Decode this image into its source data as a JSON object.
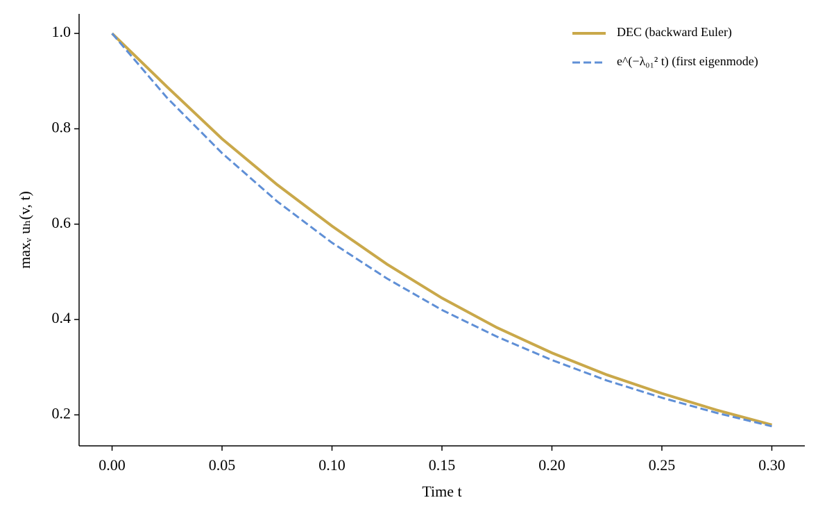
{
  "chart_data": {
    "type": "line",
    "xlabel": "Time t",
    "ylabel": "maxᵥ uₕ(v, t)",
    "x": [
      0,
      0.025,
      0.05,
      0.075,
      0.1,
      0.125,
      0.15,
      0.175,
      0.2,
      0.225,
      0.25,
      0.275,
      0.3
    ],
    "series": [
      {
        "name": "DEC (backward Euler)",
        "color": "#c9a84a",
        "dash": false,
        "values": [
          1.0,
          0.888,
          0.779,
          0.683,
          0.596,
          0.516,
          0.445,
          0.383,
          0.33,
          0.284,
          0.245,
          0.21,
          0.179
        ]
      },
      {
        "name": "e^(−λ₀₁² t) (first eigenmode)",
        "color": "#5f8fd6",
        "dash": true,
        "values": [
          1.0,
          0.865,
          0.749,
          0.648,
          0.561,
          0.486,
          0.42,
          0.364,
          0.315,
          0.272,
          0.236,
          0.204,
          0.176
        ]
      }
    ],
    "xlim": [
      -0.015,
      0.315
    ],
    "ylim": [
      0.135,
      1.041
    ],
    "xticks": [
      {
        "value": 0,
        "label": "0.00"
      },
      0.05,
      {
        "value": 0.1,
        "label": "0.10"
      },
      0.15,
      {
        "value": 0.2,
        "label": "0.20"
      },
      0.25,
      {
        "value": 0.3,
        "label": "0.30"
      }
    ],
    "yticks": [
      0.2,
      0.4,
      0.6,
      0.8,
      {
        "value": 1,
        "label": "1.0"
      }
    ],
    "legend": "upper right",
    "grid": false
  }
}
